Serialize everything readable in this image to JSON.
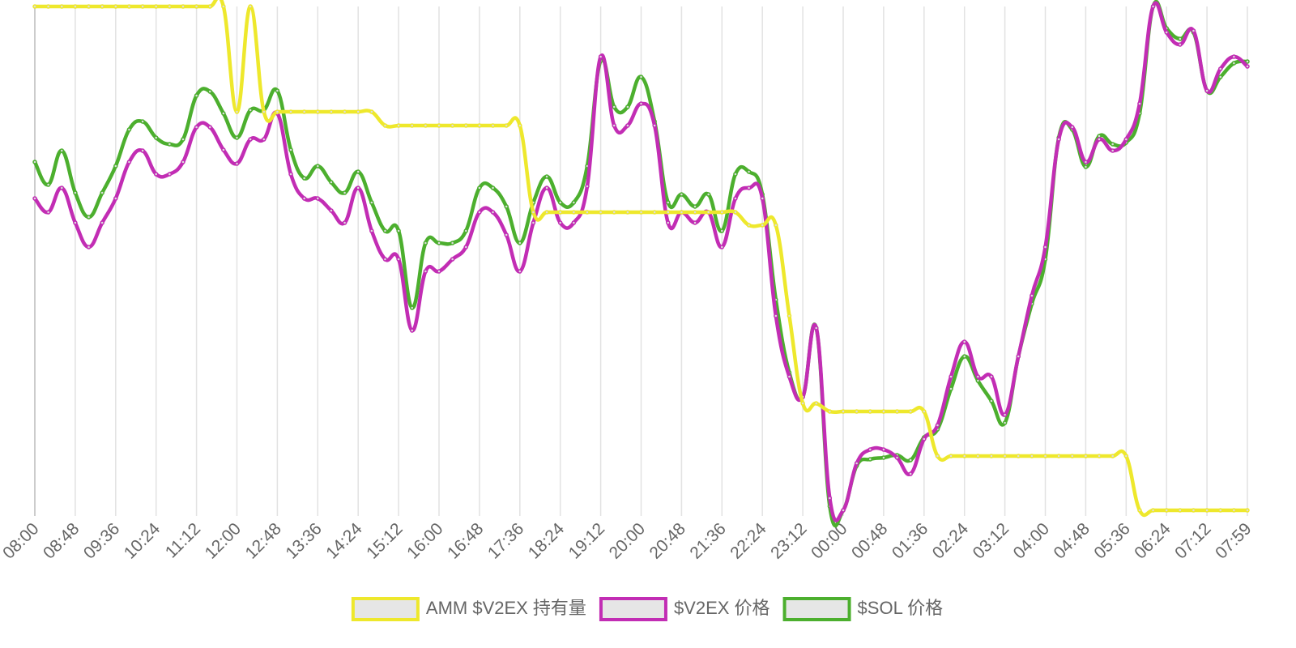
{
  "chart_data": {
    "type": "line",
    "categories": [
      "08:00",
      null,
      null,
      "08:48",
      null,
      null,
      "09:36",
      null,
      null,
      "10:24",
      null,
      null,
      "11:12",
      null,
      null,
      "12:00",
      null,
      null,
      "12:48",
      null,
      null,
      "13:36",
      null,
      null,
      "14:24",
      null,
      null,
      "15:12",
      null,
      null,
      "16:00",
      null,
      null,
      "16:48",
      null,
      null,
      "17:36",
      null,
      null,
      "18:24",
      null,
      null,
      "19:12",
      null,
      null,
      "20:00",
      null,
      null,
      "20:48",
      null,
      null,
      "21:36",
      null,
      null,
      "22:24",
      null,
      null,
      "23:12",
      null,
      null,
      "00:00",
      null,
      null,
      "00:48",
      null,
      null,
      "01:36",
      null,
      null,
      "02:24",
      null,
      null,
      "03:12",
      null,
      null,
      "04:00",
      null,
      null,
      "04:48",
      null,
      null,
      "05:36",
      null,
      null,
      "06:24",
      null,
      null,
      "07:12",
      null,
      null,
      "07:59"
    ],
    "ylim": [
      0,
      622
    ],
    "grid": true,
    "legend": "bottom",
    "series": [
      {
        "name": "AMM $V2EX 持有量",
        "color": "#eee82c",
        "values": [
          622,
          622,
          622,
          622,
          622,
          622,
          622,
          622,
          622,
          622,
          622,
          622,
          622,
          622,
          622,
          492,
          622,
          492,
          492,
          492,
          492,
          492,
          492,
          492,
          492,
          492,
          475,
          475,
          475,
          475,
          475,
          475,
          475,
          475,
          475,
          475,
          475,
          368,
          368,
          368,
          368,
          368,
          368,
          368,
          368,
          368,
          368,
          368,
          368,
          368,
          368,
          368,
          368,
          352,
          352,
          352,
          240,
          132,
          132,
          122,
          122,
          122,
          122,
          122,
          122,
          122,
          122,
          67,
          67,
          67,
          67,
          67,
          67,
          67,
          67,
          67,
          67,
          67,
          67,
          67,
          67,
          67,
          0,
          0,
          0,
          0,
          0,
          0,
          0,
          0,
          0
        ]
      },
      {
        "name": "$V2EX 价格",
        "color": "#c22db4",
        "values": [
          385,
          368,
          398,
          355,
          325,
          355,
          385,
          430,
          444,
          415,
          415,
          430,
          473,
          473,
          445,
          428,
          458,
          458,
          490,
          415,
          385,
          385,
          370,
          355,
          398,
          345,
          310,
          310,
          222,
          295,
          295,
          310,
          325,
          368,
          368,
          340,
          295,
          355,
          398,
          355,
          355,
          400,
          560,
          475,
          475,
          502,
          475,
          355,
          368,
          355,
          368,
          325,
          385,
          398,
          385,
          240,
          165,
          140,
          225,
          15,
          0,
          58,
          75,
          75,
          65,
          45,
          88,
          105,
          165,
          208,
          165,
          165,
          118,
          190,
          265,
          325,
          458,
          473,
          430,
          458,
          444,
          458,
          502,
          622,
          590,
          575,
          592,
          518,
          545,
          560,
          548
        ]
      },
      {
        "name": "$SOL 价格",
        "color": "#4caf2e",
        "values": [
          430,
          402,
          444,
          392,
          362,
          392,
          425,
          470,
          480,
          460,
          452,
          458,
          512,
          517,
          490,
          460,
          494,
          494,
          518,
          445,
          410,
          425,
          405,
          392,
          418,
          380,
          345,
          345,
          250,
          330,
          330,
          330,
          345,
          398,
          398,
          375,
          330,
          380,
          412,
          380,
          380,
          425,
          555,
          498,
          498,
          535,
          480,
          380,
          390,
          375,
          390,
          345,
          415,
          418,
          390,
          260,
          170,
          140,
          225,
          5,
          0,
          55,
          63,
          65,
          68,
          62,
          90,
          100,
          150,
          190,
          160,
          135,
          108,
          190,
          255,
          310,
          460,
          470,
          424,
          462,
          452,
          454,
          490,
          622,
          595,
          582,
          590,
          518,
          535,
          552,
          554
        ]
      }
    ]
  }
}
